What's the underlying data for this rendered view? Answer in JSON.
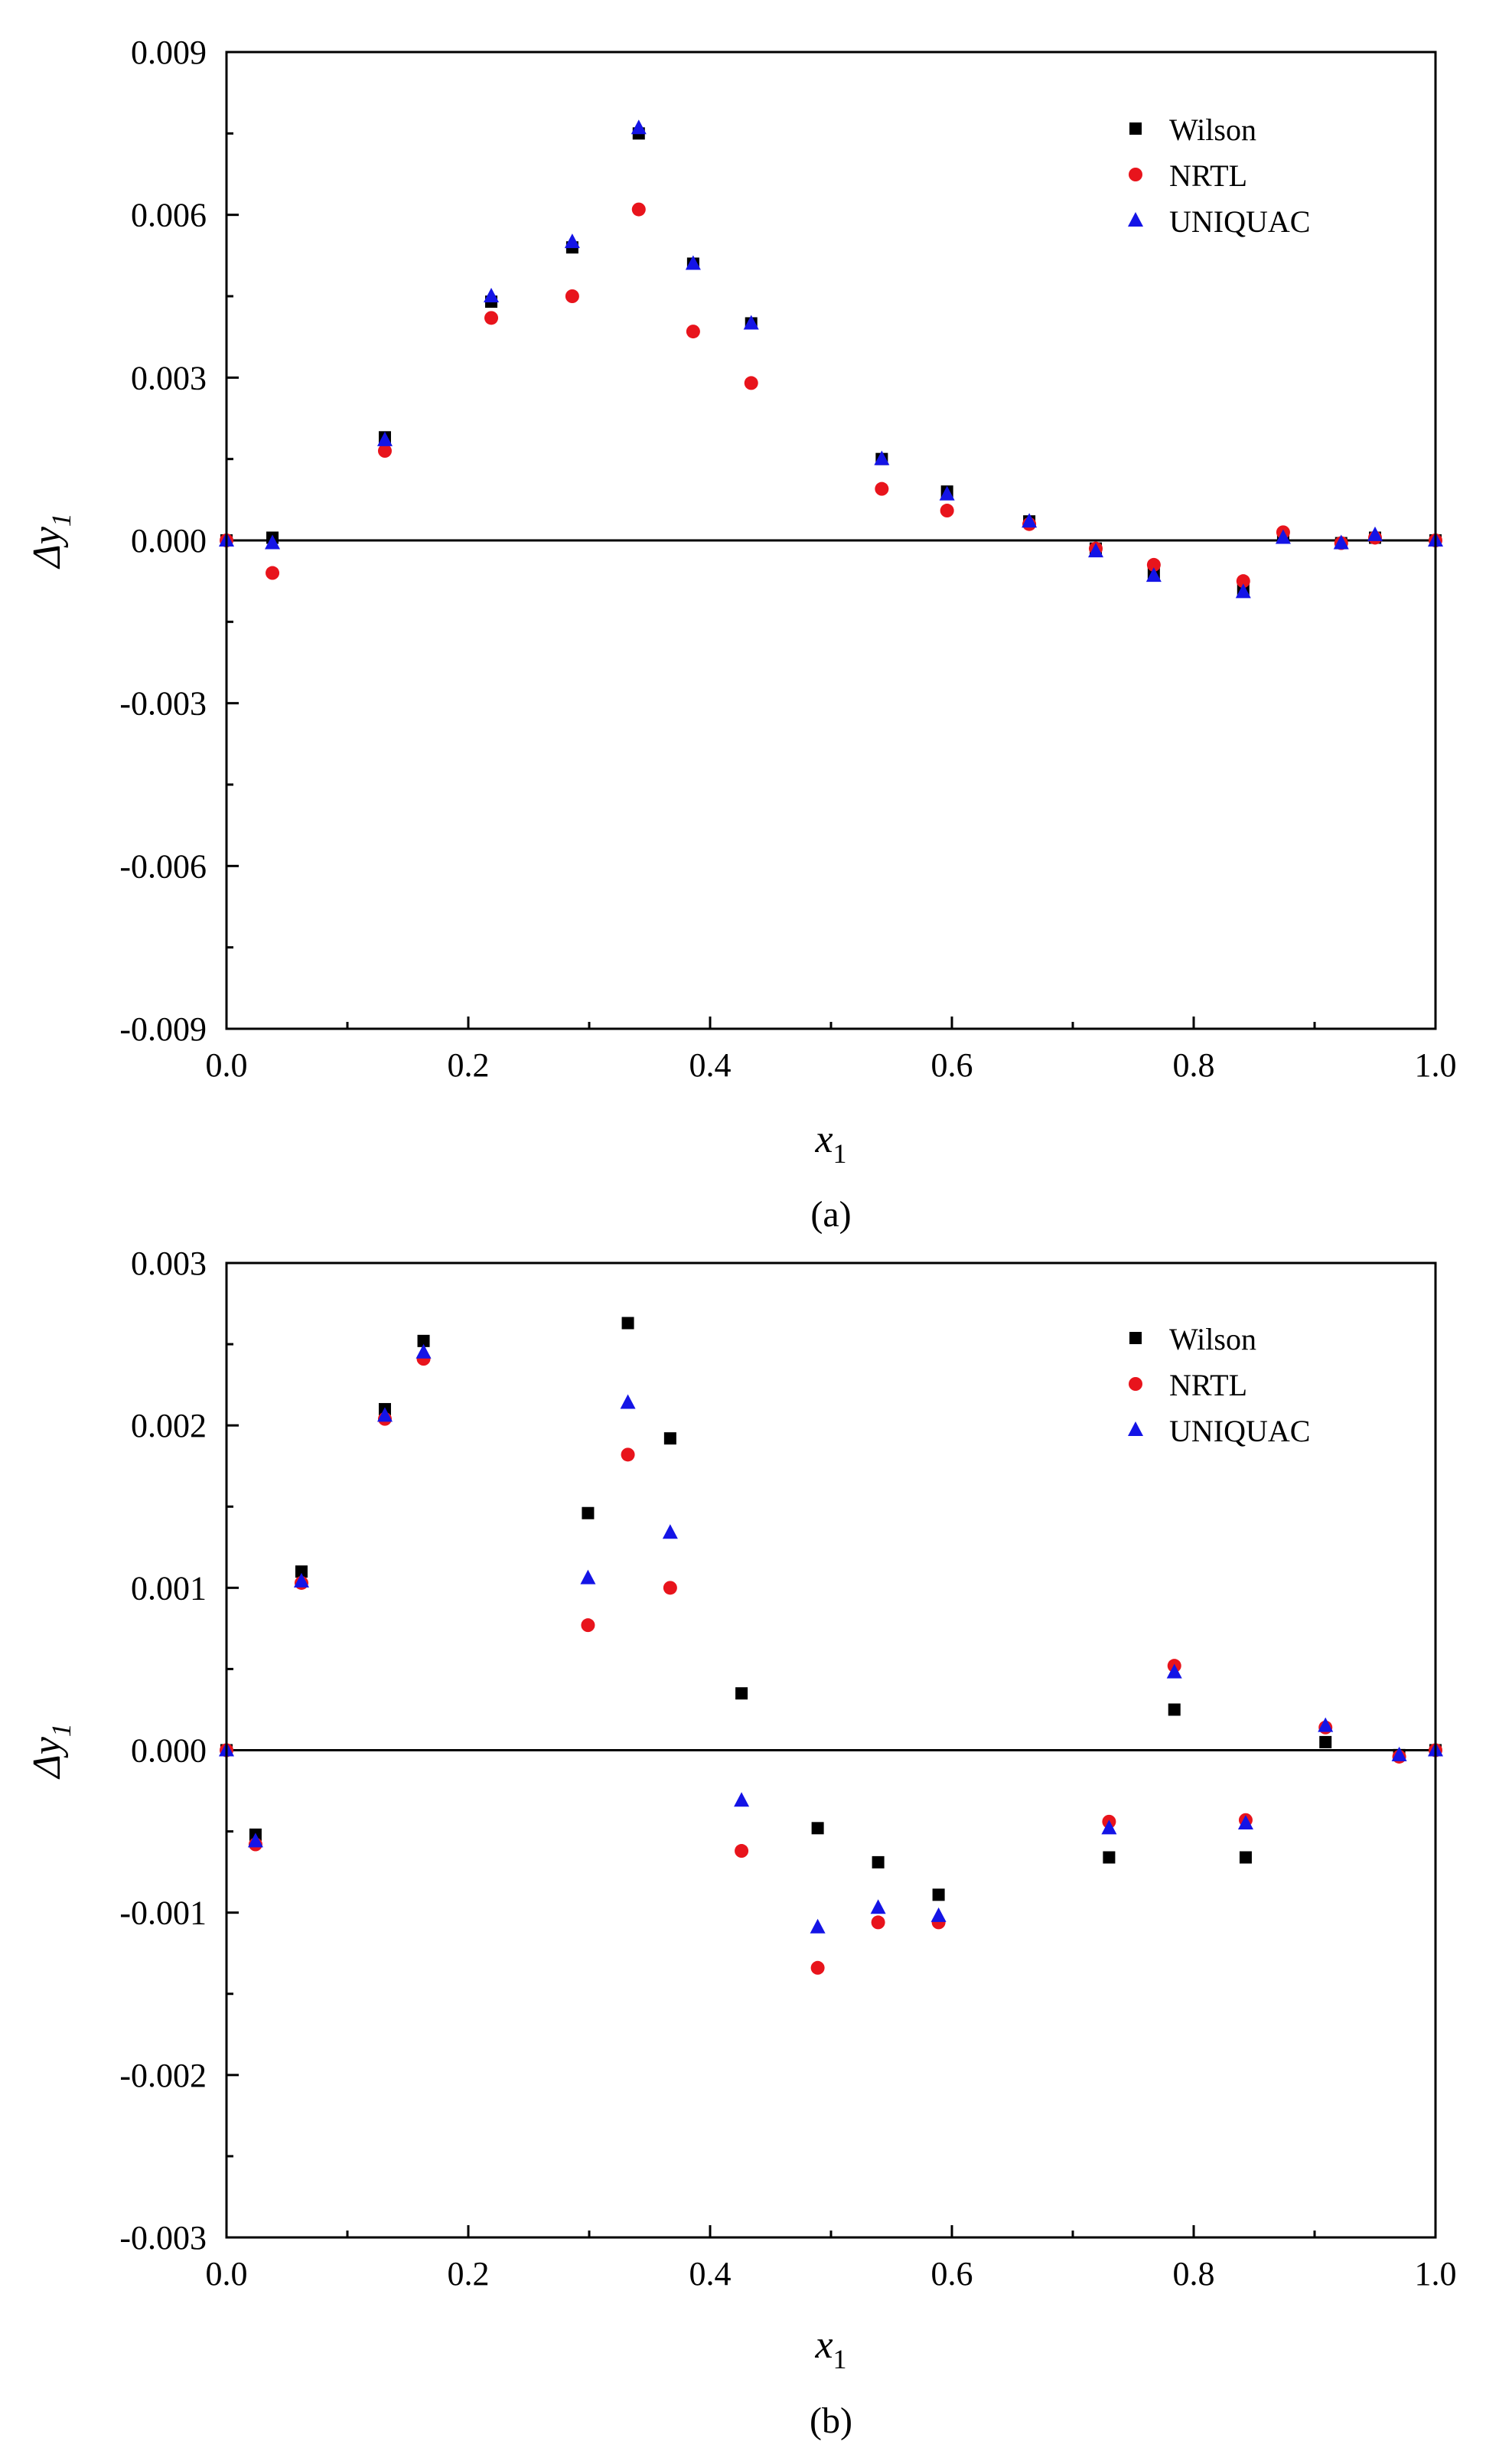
{
  "chart_data": [
    {
      "type": "scatter",
      "panel": "(a)",
      "caption": "(a)",
      "xlabel": "x",
      "xlabel_sub": "1",
      "ylabel": "Δy",
      "ylabel_sub": "1",
      "xlim": [
        0.0,
        1.0
      ],
      "ylim": [
        -0.009,
        0.009
      ],
      "x_ticks": [
        0.0,
        0.2,
        0.4,
        0.6,
        0.8,
        1.0
      ],
      "x_tick_labels": [
        "0.0",
        "0.2",
        "0.4",
        "0.6",
        "0.8",
        "1.0"
      ],
      "y_ticks": [
        0.009,
        0.006,
        0.003,
        0.0,
        -0.003,
        -0.006,
        -0.009
      ],
      "y_tick_labels": [
        "0.009",
        "0.006",
        "0.003",
        "0.000",
        "-0.003",
        "-0.006",
        "-0.009"
      ],
      "zero_line": true,
      "legend_position": "top-right",
      "series": [
        {
          "name": "Wilson",
          "marker": "square",
          "color": "#000000",
          "x": [
            0.0,
            0.038,
            0.131,
            0.219,
            0.286,
            0.341,
            0.386,
            0.434,
            0.542,
            0.596,
            0.664,
            0.719,
            0.767,
            0.841,
            0.874,
            0.922,
            0.95,
            1.0
          ],
          "y": [
            0.0,
            5e-05,
            0.0019,
            0.0044,
            0.0054,
            0.0075,
            0.0051,
            0.004,
            0.0015,
            0.0009,
            0.00035,
            -0.00015,
            -0.0006,
            -0.0009,
            5e-05,
            -5e-05,
            5e-05,
            0.0
          ]
        },
        {
          "name": "NRTL",
          "marker": "circle",
          "color": "#e8141c",
          "x": [
            0.0,
            0.038,
            0.131,
            0.219,
            0.286,
            0.341,
            0.386,
            0.434,
            0.542,
            0.596,
            0.664,
            0.719,
            0.767,
            0.841,
            0.874,
            0.922,
            0.95,
            1.0
          ],
          "y": [
            0.0,
            -0.0006,
            0.00165,
            0.0041,
            0.0045,
            0.0061,
            0.00385,
            0.0029,
            0.00095,
            0.00055,
            0.0003,
            -0.00015,
            -0.00045,
            -0.00075,
            0.00015,
            -5e-05,
            5e-05,
            0.0
          ]
        },
        {
          "name": "UNIQUAC",
          "marker": "triangle",
          "color": "#1414e6",
          "x": [
            0.0,
            0.038,
            0.131,
            0.219,
            0.286,
            0.341,
            0.386,
            0.434,
            0.542,
            0.596,
            0.664,
            0.719,
            0.767,
            0.841,
            0.874,
            0.922,
            0.95,
            1.0
          ],
          "y": [
            0.0,
            -5e-05,
            0.00185,
            0.0045,
            0.0055,
            0.0076,
            0.0051,
            0.004,
            0.0015,
            0.00085,
            0.00035,
            -0.0002,
            -0.00065,
            -0.00095,
            5e-05,
            -5e-05,
            0.0001,
            0.0
          ]
        }
      ]
    },
    {
      "type": "scatter",
      "panel": "(b)",
      "caption": "(b)",
      "xlabel": "x",
      "xlabel_sub": "1",
      "ylabel": "Δy",
      "ylabel_sub": "1",
      "xlim": [
        0.0,
        1.0
      ],
      "ylim": [
        -0.003,
        0.003
      ],
      "x_ticks": [
        0.0,
        0.2,
        0.4,
        0.6,
        0.8,
        1.0
      ],
      "x_tick_labels": [
        "0.0",
        "0.2",
        "0.4",
        "0.6",
        "0.8",
        "1.0"
      ],
      "y_ticks": [
        0.003,
        0.002,
        0.001,
        0.0,
        -0.001,
        -0.002,
        -0.003
      ],
      "y_tick_labels": [
        "0.003",
        "0.002",
        "0.001",
        "0.000",
        "-0.001",
        "-0.002",
        "-0.003"
      ],
      "zero_line": true,
      "legend_position": "top-right",
      "series": [
        {
          "name": "Wilson",
          "marker": "square",
          "color": "#000000",
          "x": [
            0.0,
            0.024,
            0.062,
            0.131,
            0.163,
            0.299,
            0.332,
            0.367,
            0.426,
            0.489,
            0.539,
            0.589,
            0.73,
            0.784,
            0.843,
            0.909,
            0.97,
            1.0
          ],
          "y": [
            0.0,
            -0.00052,
            0.0011,
            0.0021,
            0.00252,
            0.00146,
            0.00263,
            0.00192,
            0.00035,
            -0.00048,
            -0.00069,
            -0.00089,
            -0.00066,
            0.00025,
            -0.00066,
            5e-05,
            -3e-05,
            0.0
          ]
        },
        {
          "name": "NRTL",
          "marker": "circle",
          "color": "#e8141c",
          "x": [
            0.0,
            0.024,
            0.062,
            0.131,
            0.163,
            0.299,
            0.332,
            0.367,
            0.426,
            0.489,
            0.539,
            0.589,
            0.73,
            0.784,
            0.843,
            0.909,
            0.97,
            1.0
          ],
          "y": [
            0.0,
            -0.00058,
            0.00103,
            0.00204,
            0.00241,
            0.00077,
            0.00182,
            0.001,
            -0.00062,
            -0.00134,
            -0.00106,
            -0.00106,
            -0.00044,
            0.00052,
            -0.00043,
            0.00014,
            -4e-05,
            0.0
          ]
        },
        {
          "name": "UNIQUAC",
          "marker": "triangle",
          "color": "#1414e6",
          "x": [
            0.0,
            0.024,
            0.062,
            0.131,
            0.163,
            0.299,
            0.332,
            0.367,
            0.426,
            0.489,
            0.539,
            0.589,
            0.73,
            0.784,
            0.843,
            0.909,
            0.97,
            1.0
          ],
          "y": [
            0.0,
            -0.00056,
            0.00104,
            0.00206,
            0.00245,
            0.00106,
            0.00214,
            0.00134,
            -0.00031,
            -0.00109,
            -0.00097,
            -0.00102,
            -0.00048,
            0.00048,
            -0.00045,
            0.00015,
            -3e-05,
            0.0
          ]
        }
      ]
    }
  ]
}
